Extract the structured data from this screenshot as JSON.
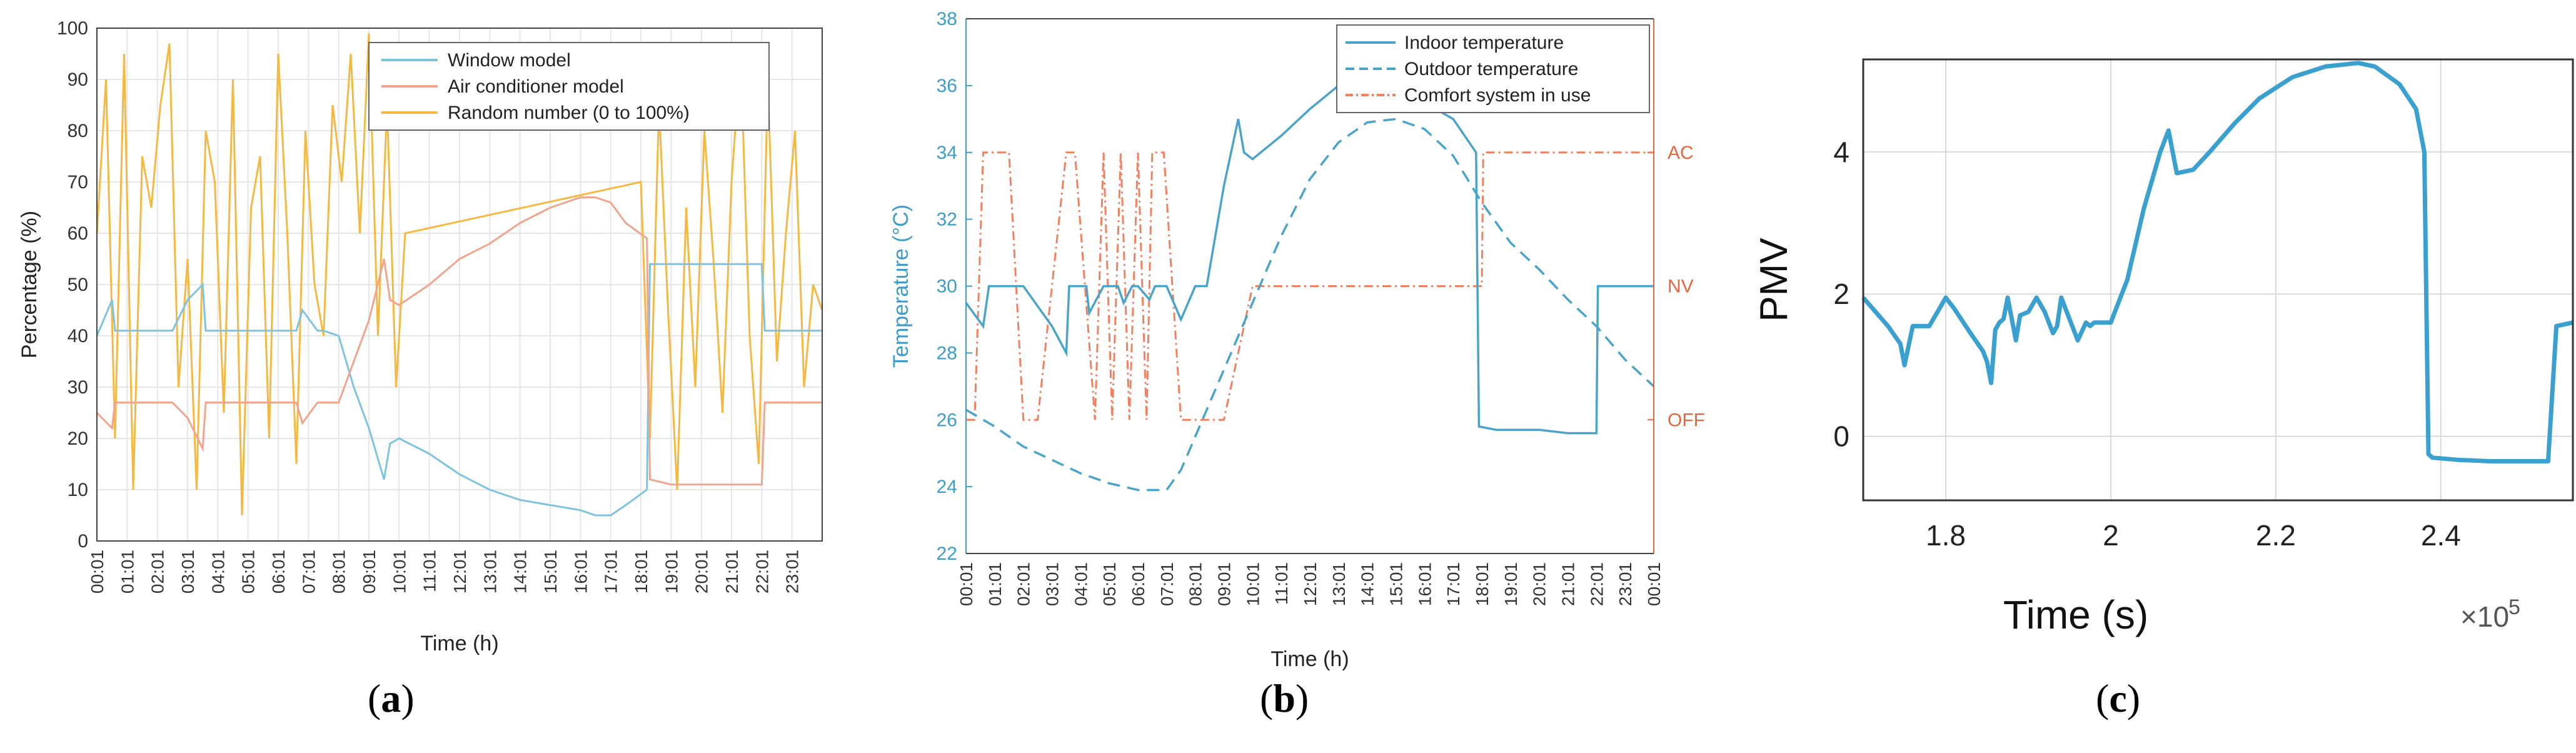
{
  "panel_labels": {
    "a": "a",
    "b": "b",
    "c": "c"
  },
  "chart_data": [
    {
      "type": "line",
      "panel": "a",
      "xlabel": "Time (h)",
      "ylabel": "Percentage (%)",
      "ylim": [
        0,
        100
      ],
      "yticks": [
        0,
        10,
        20,
        30,
        40,
        50,
        60,
        70,
        80,
        90,
        100
      ],
      "xlim": [
        0,
        24
      ],
      "xtick_labels": [
        "00:01",
        "01:01",
        "02:01",
        "03:01",
        "04:01",
        "05:01",
        "06:01",
        "07:01",
        "08:01",
        "09:01",
        "10:01",
        "11:01",
        "12:01",
        "13:01",
        "14:01",
        "15:01",
        "16:01",
        "17:01",
        "18:01",
        "19:01",
        "20:01",
        "21:01",
        "22:01",
        "23:01"
      ],
      "grid": true,
      "legend": "top-right",
      "colors": {
        "window": "#7ec4e0",
        "ac": "#f0a58c",
        "random": "#f5b942"
      },
      "series": [
        {
          "name": "Window model",
          "x": [
            0,
            0.5,
            0.6,
            1.5,
            1.7,
            2.5,
            3,
            3.5,
            3.6,
            4.5,
            5,
            5.5,
            6,
            6.6,
            6.8,
            7.3,
            7.5,
            8,
            8.5,
            9,
            9.5,
            9.7,
            10,
            11,
            12,
            13,
            14,
            15,
            16,
            16.5,
            17,
            17.5,
            18.2,
            18.3,
            19,
            20,
            21,
            22,
            22.1,
            23,
            24
          ],
          "y": [
            40,
            47,
            41,
            41,
            41,
            41,
            47,
            50,
            41,
            41,
            41,
            41,
            41,
            41,
            45,
            41,
            41,
            40,
            30,
            22,
            12,
            19,
            20,
            17,
            13,
            10,
            8,
            7,
            6,
            5,
            5,
            7,
            10,
            54,
            54,
            54,
            54,
            54,
            41,
            41,
            41
          ]
        },
        {
          "name": "Air conditioner model",
          "x": [
            0,
            0.5,
            0.6,
            1.5,
            2.5,
            3,
            3.5,
            3.6,
            4.5,
            5,
            5.5,
            6,
            6.6,
            6.8,
            7.3,
            7.5,
            8,
            8.5,
            9,
            9.5,
            9.7,
            10,
            11,
            12,
            13,
            14,
            15,
            16,
            16.5,
            17,
            17.5,
            18.2,
            18.3,
            19,
            20,
            21,
            22,
            22.1,
            23,
            24
          ],
          "y": [
            25,
            22,
            27,
            27,
            27,
            24,
            18,
            27,
            27,
            27,
            27,
            27,
            27,
            23,
            27,
            27,
            27,
            35,
            43,
            55,
            47,
            46,
            50,
            55,
            58,
            62,
            65,
            67,
            67,
            66,
            62,
            59,
            12,
            11,
            11,
            11,
            11,
            27,
            27,
            27
          ]
        },
        {
          "name": "Random number (0 to 100%)",
          "x": [
            0,
            0.3,
            0.6,
            0.9,
            1.2,
            1.5,
            1.8,
            2.1,
            2.4,
            2.7,
            3,
            3.3,
            3.6,
            3.9,
            4.2,
            4.5,
            4.8,
            5.1,
            5.4,
            5.7,
            6,
            6.3,
            6.6,
            6.9,
            7.2,
            7.5,
            7.8,
            8.1,
            8.4,
            8.7,
            9,
            9.3,
            9.6,
            9.9,
            10.2,
            18,
            18.3,
            18.6,
            18.9,
            19.2,
            19.5,
            19.8,
            20.1,
            20.4,
            20.7,
            21,
            21.3,
            21.6,
            21.9,
            22.2,
            22.5,
            22.8,
            23.1,
            23.4,
            23.7,
            24
          ],
          "y": [
            60,
            90,
            20,
            95,
            10,
            75,
            65,
            85,
            97,
            30,
            55,
            10,
            80,
            70,
            25,
            90,
            5,
            65,
            75,
            20,
            95,
            60,
            15,
            80,
            50,
            40,
            85,
            70,
            95,
            60,
            99,
            40,
            85,
            30,
            60,
            70,
            20,
            85,
            45,
            10,
            65,
            30,
            80,
            55,
            25,
            70,
            95,
            40,
            15,
            90,
            35,
            60,
            80,
            30,
            50,
            45
          ]
        }
      ]
    },
    {
      "type": "line",
      "panel": "b",
      "xlabel": "Time (h)",
      "ylabel": "Temperature (°C)",
      "ylim": [
        22,
        38
      ],
      "yticks": [
        22,
        24,
        26,
        28,
        30,
        32,
        34,
        36,
        38
      ],
      "xlim": [
        0,
        24
      ],
      "xtick_labels": [
        "00:01",
        "01:01",
        "02:01",
        "03:01",
        "04:01",
        "05:01",
        "06:01",
        "07:01",
        "08:01",
        "09:01",
        "10:01",
        "11:01",
        "12:01",
        "13:01",
        "14:01",
        "15:01",
        "16:01",
        "17:01",
        "18:01",
        "19:01",
        "20:01",
        "21:01",
        "22:01",
        "23:01",
        "00:01"
      ],
      "right_axis_labels": [
        "AC",
        "NV",
        "OFF"
      ],
      "right_axis_values": [
        34,
        30,
        26
      ],
      "grid": false,
      "legend": "top-right",
      "colors": {
        "indoor": "#4aa3c9",
        "outdoor": "#4aa3c9",
        "comfort": "#f08060",
        "left_axis": "#3d9cc8",
        "right_axis": "#e8643c"
      },
      "series": [
        {
          "name": "Indoor temperature",
          "x": [
            0,
            0.6,
            0.8,
            1.5,
            2,
            3,
            3.5,
            3.6,
            4.2,
            4.3,
            4.8,
            5.3,
            5.5,
            5.8,
            6,
            6.4,
            6.6,
            7,
            7.5,
            8,
            8.4,
            9,
            9.5,
            9.7,
            10,
            11,
            12,
            13,
            14,
            15,
            16,
            17,
            17.8,
            17.9,
            18.5,
            19,
            20,
            21,
            22,
            22.05,
            23,
            24
          ],
          "y": [
            29.5,
            28.8,
            30,
            30,
            30,
            28.8,
            28,
            30,
            30,
            29.2,
            30,
            30,
            29.5,
            30,
            30,
            29.6,
            30,
            30,
            29,
            30,
            30,
            33,
            35,
            34,
            33.8,
            34.5,
            35.3,
            36,
            36,
            36,
            35.5,
            35,
            34,
            25.8,
            25.7,
            25.7,
            25.7,
            25.6,
            25.6,
            30,
            30,
            30
          ]
        },
        {
          "name": "Outdoor temperature",
          "x": [
            0,
            1,
            2,
            3,
            4,
            5,
            6,
            6.5,
            7,
            7.5,
            8,
            9,
            10,
            11,
            12,
            13,
            14,
            15,
            16,
            17,
            18,
            19,
            20,
            21,
            22,
            23,
            24
          ],
          "y": [
            26.3,
            25.8,
            25.2,
            24.8,
            24.4,
            24.1,
            23.9,
            23.9,
            23.9,
            24.5,
            25.5,
            27.5,
            29.5,
            31.5,
            33.2,
            34.3,
            34.9,
            35,
            34.7,
            33.9,
            32.5,
            31.3,
            30.5,
            29.6,
            28.8,
            27.8,
            27
          ]
        },
        {
          "name": "Comfort system in use",
          "x": [
            0,
            0.3,
            0.6,
            1.5,
            2,
            2.5,
            3.5,
            3.8,
            4.5,
            4.8,
            5.1,
            5.4,
            5.7,
            6,
            6.3,
            6.5,
            6.9,
            7.5,
            8,
            9,
            10,
            18,
            18.05,
            24
          ],
          "y": [
            26,
            26,
            34,
            34,
            26,
            26,
            34,
            34,
            26,
            34,
            26,
            34,
            26,
            34,
            26,
            34,
            34,
            26,
            26,
            26,
            30,
            30,
            34,
            34
          ]
        }
      ]
    },
    {
      "type": "line",
      "panel": "c",
      "xlabel": "Time (s)",
      "ylabel": "PMV",
      "xlim": [
        1.7,
        2.56
      ],
      "xticks": [
        1.8,
        2,
        2.2,
        2.4
      ],
      "x_multiplier_label": "×10",
      "x_multiplier_exp": "5",
      "ylim": [
        -0.9,
        5.3
      ],
      "yticks": [
        0,
        2,
        4
      ],
      "grid": true,
      "colors": {
        "pmv": "#3aa0d0"
      },
      "series": [
        {
          "x": [
            1.7,
            1.715,
            1.73,
            1.745,
            1.75,
            1.76,
            1.775,
            1.78,
            1.79,
            1.8,
            1.81,
            1.83,
            1.845,
            1.85,
            1.855,
            1.86,
            1.865,
            1.87,
            1.875,
            1.88,
            1.885,
            1.89,
            1.9,
            1.91,
            1.92,
            1.93,
            1.935,
            1.94,
            1.95,
            1.96,
            1.97,
            1.975,
            1.98,
            1.99,
            2,
            2.02,
            2.04,
            2.06,
            2.07,
            2.08,
            2.1,
            2.12,
            2.15,
            2.18,
            2.22,
            2.26,
            2.3,
            2.32,
            2.35,
            2.37,
            2.38,
            2.385,
            2.39,
            2.42,
            2.46,
            2.5,
            2.53,
            2.54,
            2.56
          ],
          "y": [
            1.95,
            1.75,
            1.55,
            1.3,
            1.0,
            1.55,
            1.55,
            1.55,
            1.75,
            1.95,
            1.8,
            1.45,
            1.2,
            1.05,
            0.75,
            1.5,
            1.6,
            1.65,
            1.95,
            1.65,
            1.35,
            1.7,
            1.75,
            1.95,
            1.75,
            1.45,
            1.55,
            1.95,
            1.65,
            1.35,
            1.6,
            1.55,
            1.6,
            1.6,
            1.6,
            2.2,
            3.2,
            4.0,
            4.3,
            3.7,
            3.75,
            4.0,
            4.4,
            4.75,
            5.05,
            5.2,
            5.25,
            5.2,
            4.95,
            4.6,
            4.0,
            -0.25,
            -0.3,
            -0.33,
            -0.35,
            -0.35,
            -0.35,
            1.55,
            1.6
          ]
        }
      ]
    }
  ]
}
